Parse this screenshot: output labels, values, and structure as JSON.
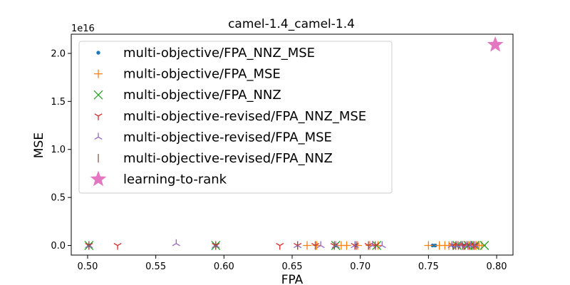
{
  "chart_data": {
    "type": "scatter",
    "title": "camel-1.4_camel-1.4",
    "xlabel": "FPA",
    "ylabel": "MSE",
    "y_offset_text": "1e16",
    "xlim": [
      0.488,
      0.812
    ],
    "ylim": [
      -0.1,
      2.2
    ],
    "x_ticks": [
      0.5,
      0.55,
      0.6,
      0.65,
      0.7,
      0.75,
      0.8
    ],
    "x_tick_labels": [
      "0.50",
      "0.55",
      "0.60",
      "0.65",
      "0.70",
      "0.75",
      "0.80"
    ],
    "y_ticks": [
      0.0,
      0.5,
      1.0,
      1.5,
      2.0
    ],
    "y_tick_labels": [
      "0.0",
      "0.5",
      "1.0",
      "1.5",
      "2.0"
    ],
    "legend_position": "upper-left",
    "grid": false,
    "series": [
      {
        "name": "multi-objective/FPA_NNZ_MSE",
        "marker": "dot",
        "color": "#1f77b4",
        "x": [
          0.501,
          0.594,
          0.682,
          0.697,
          0.753,
          0.755,
          0.768,
          0.772,
          0.776,
          0.779,
          0.782,
          0.785
        ],
        "y": [
          0,
          0,
          0,
          0,
          0,
          0,
          0,
          0,
          0,
          0,
          0,
          0
        ]
      },
      {
        "name": "multi-objective/FPA_MSE",
        "marker": "plus",
        "color": "#ff7f0e",
        "x": [
          0.661,
          0.668,
          0.686,
          0.69,
          0.698,
          0.707,
          0.713,
          0.75,
          0.758,
          0.762,
          0.765,
          0.768,
          0.77,
          0.772,
          0.775,
          0.777,
          0.78,
          0.782,
          0.785,
          0.787,
          0.789
        ],
        "y": [
          0,
          0,
          0,
          0,
          0,
          0,
          0,
          0,
          0,
          0,
          0,
          0,
          0,
          0,
          0,
          0,
          0,
          0,
          0,
          0,
          0
        ]
      },
      {
        "name": "multi-objective/FPA_NNZ",
        "marker": "x",
        "color": "#2ca02c",
        "x": [
          0.501,
          0.594,
          0.682,
          0.712,
          0.771,
          0.779,
          0.784,
          0.791
        ],
        "y": [
          0,
          0,
          0,
          0,
          0,
          0,
          0,
          0
        ]
      },
      {
        "name": "multi-objective-revised/FPA_NNZ_MSE",
        "marker": "tri_down",
        "color": "#d62728",
        "x": [
          0.501,
          0.522,
          0.594,
          0.641,
          0.654,
          0.667,
          0.681,
          0.696,
          0.706,
          0.711,
          0.768,
          0.772,
          0.776,
          0.78,
          0.784
        ],
        "y": [
          0,
          0,
          0,
          0,
          0,
          0,
          0,
          0,
          0,
          0,
          0,
          0,
          0,
          0,
          0
        ]
      },
      {
        "name": "multi-objective-revised/FPA_MSE",
        "marker": "tri_up",
        "color": "#9467bd",
        "x": [
          0.501,
          0.565,
          0.594,
          0.654,
          0.671,
          0.682,
          0.696,
          0.709,
          0.716,
          0.767,
          0.771,
          0.774,
          0.778,
          0.781,
          0.784
        ],
        "y": [
          0,
          0.02,
          0,
          0,
          0,
          0,
          0,
          0,
          0,
          0,
          0,
          0,
          0,
          0,
          0
        ]
      },
      {
        "name": "multi-objective-revised/FPA_NNZ",
        "marker": "vline",
        "color": "#8c564b",
        "x": [
          0.501,
          0.594,
          0.654,
          0.667,
          0.681,
          0.697,
          0.706,
          0.711,
          0.77,
          0.775,
          0.779,
          0.783
        ],
        "y": [
          0,
          0,
          0,
          0,
          0,
          0,
          0,
          0,
          0,
          0,
          0,
          0
        ]
      },
      {
        "name": "learning-to-rank",
        "marker": "star",
        "color": "#e377c2",
        "x": [
          0.799
        ],
        "y": [
          2.09
        ]
      }
    ]
  }
}
